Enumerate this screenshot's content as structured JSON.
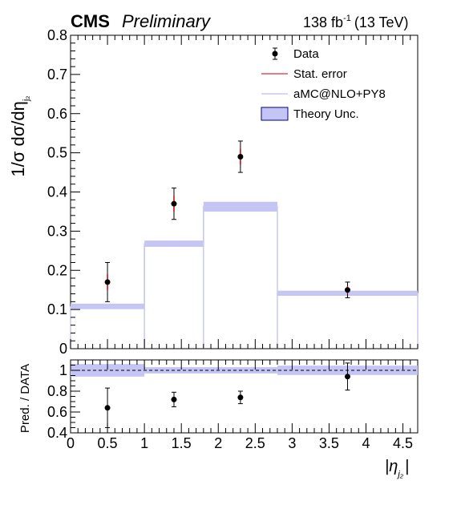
{
  "header": {
    "experiment": "CMS",
    "status": "Preliminary",
    "lumi_value": "138 fb",
    "lumi_exp": "-1",
    "energy": "(13 TeV)"
  },
  "chart_data": [
    {
      "type": "scatter",
      "panel": "main",
      "ylabel": "1/σ dσ/dη",
      "ylabel_sub": "j₂",
      "ylim": [
        0,
        0.8
      ],
      "yticks": [
        "0",
        "0.1",
        "0.2",
        "0.3",
        "0.4",
        "0.5",
        "0.6",
        "0.7",
        "0.8"
      ],
      "xlim": [
        0,
        4.7
      ],
      "bin_edges": [
        0,
        1.0,
        1.8,
        2.8,
        4.7
      ],
      "series": [
        {
          "name": "Data",
          "x": [
            0.5,
            1.4,
            2.3,
            3.75
          ],
          "y": [
            0.17,
            0.37,
            0.49,
            0.15
          ],
          "total_err": [
            0.05,
            0.04,
            0.04,
            0.02
          ],
          "stat_err": [
            0.02,
            0.02,
            0.02,
            0.01
          ],
          "color": "#000000"
        },
        {
          "name": "Stat. error",
          "color": "#cc0000"
        },
        {
          "name": "aMC@NLO+PY8",
          "type": "step",
          "values": [
            0.108,
            0.268,
            0.363,
            0.141
          ],
          "color": "#c8c8f0"
        },
        {
          "name": "Theory Unc.",
          "type": "band",
          "low": [
            0.101,
            0.26,
            0.35,
            0.135
          ],
          "high": [
            0.115,
            0.276,
            0.375,
            0.148
          ],
          "color": "#c5c5f5",
          "edge_color": "#000080"
        }
      ],
      "legend_position": "top-right"
    },
    {
      "type": "scatter",
      "panel": "ratio",
      "ylabel": "Pred. / DATA",
      "ylim": [
        0.4,
        1.1
      ],
      "yticks": [
        "0.4",
        "0.6",
        "0.8",
        "1"
      ],
      "ytick_values": [
        0.4,
        0.6,
        0.8,
        1.0
      ],
      "xlabel": "|η",
      "xlabel_sub": "j₂",
      "xlabel_close": "|",
      "xlim": [
        0,
        4.7
      ],
      "xticks": [
        "0",
        "0.5",
        "1",
        "1.5",
        "2",
        "2.5",
        "3",
        "3.5",
        "4",
        "4.5"
      ],
      "xtick_values": [
        0,
        0.5,
        1,
        1.5,
        2,
        2.5,
        3,
        3.5,
        4,
        4.5
      ],
      "reference_line": 1.0,
      "series": [
        {
          "name": "Ratio",
          "x": [
            0.5,
            1.4,
            2.3,
            3.75
          ],
          "y": [
            0.64,
            0.72,
            0.74,
            0.94
          ],
          "err": [
            0.19,
            0.07,
            0.06,
            0.13
          ]
        },
        {
          "name": "Theory Unc.",
          "type": "band",
          "low": [
            0.94,
            0.97,
            0.97,
            0.955
          ],
          "high": [
            1.06,
            1.03,
            1.03,
            1.045
          ]
        }
      ]
    }
  ]
}
